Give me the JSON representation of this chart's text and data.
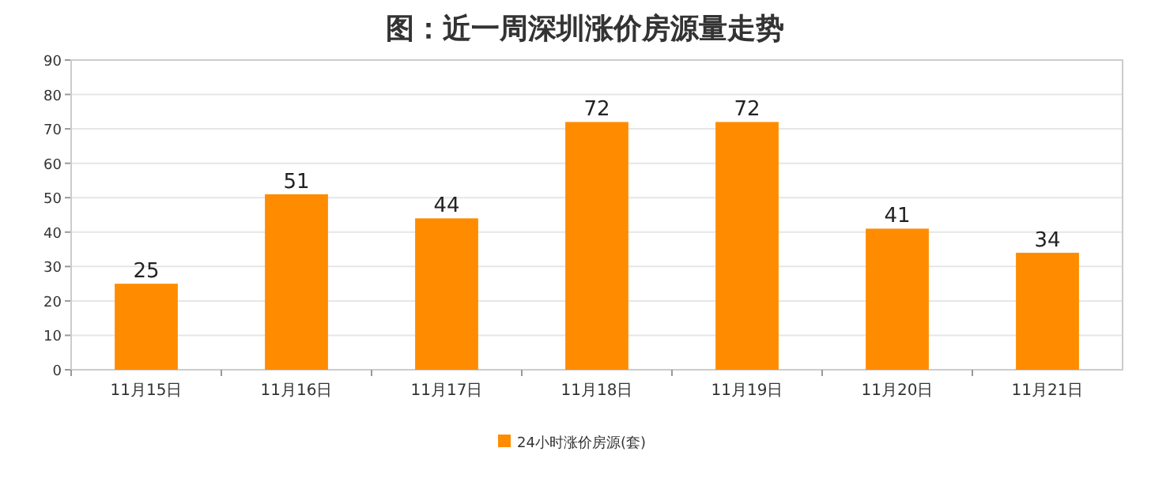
{
  "chart_data": {
    "type": "bar",
    "title": "图：近一周深圳涨价房源量走势",
    "categories": [
      "11月15日",
      "11月16日",
      "11月17日",
      "11月18日",
      "11月19日",
      "11月20日",
      "11月21日"
    ],
    "series": [
      {
        "name": "24小时涨价房源(套)",
        "color": "#ff8c00",
        "values": [
          25,
          51,
          44,
          72,
          72,
          41,
          34
        ]
      }
    ],
    "ylim": [
      0,
      90
    ],
    "yticks": [
      0,
      10,
      20,
      30,
      40,
      50,
      60,
      70,
      80,
      90
    ],
    "grid": "y",
    "legend": "bottom",
    "data_labels": true
  }
}
